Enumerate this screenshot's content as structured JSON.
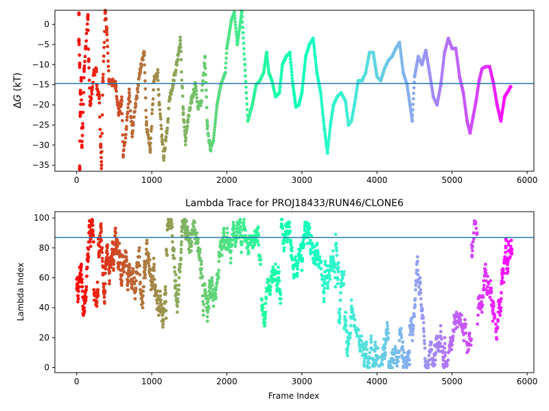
{
  "chart_data": [
    {
      "type": "scatter",
      "title": "",
      "xlabel": "",
      "ylabel": "ΔG (kT)",
      "ylabel_parts": {
        "delta": "Δ",
        "var": "G",
        "unit": " (kT)"
      },
      "xlim": [
        -290,
        6090
      ],
      "ylim": [
        -36.5,
        3.5
      ],
      "xticks": [
        0,
        1000,
        2000,
        3000,
        4000,
        5000,
        6000
      ],
      "yticks": [
        0,
        -5,
        -10,
        -15,
        -20,
        -25,
        -30,
        -35
      ],
      "hline": -14.7,
      "hline_color": "#1f77b4",
      "colormap": "rainbow",
      "n_frames": 5800,
      "grid": false,
      "series_points": [
        [
          30,
          2.5
        ],
        [
          30,
          -4
        ],
        [
          40,
          -10
        ],
        [
          50,
          -17
        ],
        [
          50,
          -22
        ],
        [
          60,
          -14
        ],
        [
          80,
          -25.5
        ],
        [
          70,
          -30.5
        ],
        [
          40,
          -36
        ],
        [
          120,
          -6
        ],
        [
          150,
          2
        ],
        [
          100,
          -11
        ],
        [
          160,
          -9
        ],
        [
          180,
          -20
        ],
        [
          230,
          -12
        ],
        [
          260,
          -11
        ],
        [
          270,
          -16
        ],
        [
          300,
          -18
        ],
        [
          320,
          -30.5
        ],
        [
          330,
          -35
        ],
        [
          350,
          -14
        ],
        [
          380,
          2.8
        ],
        [
          400,
          -1
        ],
        [
          430,
          -14
        ],
        [
          520,
          -15
        ],
        [
          560,
          -22
        ],
        [
          600,
          -19
        ],
        [
          620,
          -32.5
        ],
        [
          660,
          -26
        ],
        [
          700,
          -17
        ],
        [
          740,
          -27
        ],
        [
          800,
          -18
        ],
        [
          850,
          -11
        ],
        [
          900,
          -7
        ],
        [
          930,
          -25
        ],
        [
          980,
          -31
        ],
        [
          1030,
          -14
        ],
        [
          1080,
          -12
        ],
        [
          1100,
          -20
        ],
        [
          1140,
          -29
        ],
        [
          1160,
          -33
        ],
        [
          1200,
          -27
        ],
        [
          1240,
          -18
        ],
        [
          1280,
          -15
        ],
        [
          1330,
          -10
        ],
        [
          1380,
          -4
        ],
        [
          1420,
          -22
        ],
        [
          1450,
          -29
        ],
        [
          1480,
          -24
        ],
        [
          1530,
          -19
        ],
        [
          1580,
          -15
        ],
        [
          1620,
          -21
        ],
        [
          1660,
          -19
        ],
        [
          1710,
          -8
        ],
        [
          1740,
          -25
        ],
        [
          1780,
          -31
        ],
        [
          1820,
          -29
        ],
        [
          1870,
          -20
        ],
        [
          1920,
          -15
        ],
        [
          1980,
          -12
        ],
        [
          2000,
          -6
        ],
        [
          2060,
          1
        ],
        [
          2100,
          3
        ],
        [
          2140,
          -5
        ],
        [
          2200,
          3.2
        ],
        [
          2240,
          -10
        ],
        [
          2280,
          -24
        ],
        [
          2340,
          -20
        ],
        [
          2390,
          -15
        ],
        [
          2440,
          -14
        ],
        [
          2490,
          -12
        ],
        [
          2530,
          -7
        ],
        [
          2560,
          -12
        ],
        [
          2600,
          -14
        ],
        [
          2650,
          -18
        ],
        [
          2700,
          -17
        ],
        [
          2740,
          -10
        ],
        [
          2790,
          -8
        ],
        [
          2840,
          -7
        ],
        [
          2880,
          -15
        ],
        [
          2920,
          -20.5
        ],
        [
          2960,
          -20
        ],
        [
          3000,
          -17
        ],
        [
          3050,
          -8
        ],
        [
          3100,
          -5
        ],
        [
          3150,
          -3.5
        ],
        [
          3200,
          -12
        ],
        [
          3250,
          -17
        ],
        [
          3300,
          -26
        ],
        [
          3340,
          -32
        ],
        [
          3380,
          -25
        ],
        [
          3420,
          -20
        ],
        [
          3470,
          -18
        ],
        [
          3520,
          -17
        ],
        [
          3580,
          -19
        ],
        [
          3620,
          -25
        ],
        [
          3660,
          -24
        ],
        [
          3700,
          -20
        ],
        [
          3750,
          -14
        ],
        [
          3800,
          -14
        ],
        [
          3850,
          -12
        ],
        [
          3900,
          -7
        ],
        [
          3950,
          -7
        ],
        [
          4000,
          -13
        ],
        [
          4050,
          -14
        ],
        [
          4100,
          -11
        ],
        [
          4150,
          -9
        ],
        [
          4200,
          -8
        ],
        [
          4250,
          -6
        ],
        [
          4300,
          -4.5
        ],
        [
          4350,
          -12
        ],
        [
          4400,
          -15
        ],
        [
          4440,
          -20
        ],
        [
          4470,
          -24
        ],
        [
          4500,
          -13
        ],
        [
          4550,
          -8
        ],
        [
          4600,
          -10
        ],
        [
          4650,
          -6.5
        ],
        [
          4700,
          -12
        ],
        [
          4750,
          -18
        ],
        [
          4800,
          -20
        ],
        [
          4850,
          -15
        ],
        [
          4900,
          -7
        ],
        [
          4950,
          -3.5
        ],
        [
          5000,
          -6
        ],
        [
          5050,
          -6
        ],
        [
          5100,
          -13
        ],
        [
          5150,
          -17
        ],
        [
          5200,
          -24
        ],
        [
          5240,
          -27
        ],
        [
          5280,
          -23
        ],
        [
          5320,
          -19
        ],
        [
          5360,
          -14
        ],
        [
          5400,
          -11
        ],
        [
          5450,
          -10.5
        ],
        [
          5500,
          -10.5
        ],
        [
          5550,
          -14.5
        ],
        [
          5600,
          -20
        ],
        [
          5650,
          -24
        ],
        [
          5700,
          -18
        ],
        [
          5750,
          -16.5
        ],
        [
          5780,
          -15.5
        ]
      ]
    },
    {
      "type": "scatter",
      "title": "Lambda Trace for PROJ18433/RUN46/CLONE6",
      "xlabel": "Frame Index",
      "ylabel": "Lambda Index",
      "xlim": [
        -290,
        6090
      ],
      "ylim": [
        -3.4,
        104.2
      ],
      "xticks": [
        0,
        1000,
        2000,
        3000,
        4000,
        5000,
        6000
      ],
      "yticks": [
        0,
        20,
        40,
        60,
        80,
        100
      ],
      "hline": 87,
      "hline_color": "#1f77b4",
      "colormap": "rainbow",
      "n_frames": 5800,
      "grid": false
    }
  ]
}
